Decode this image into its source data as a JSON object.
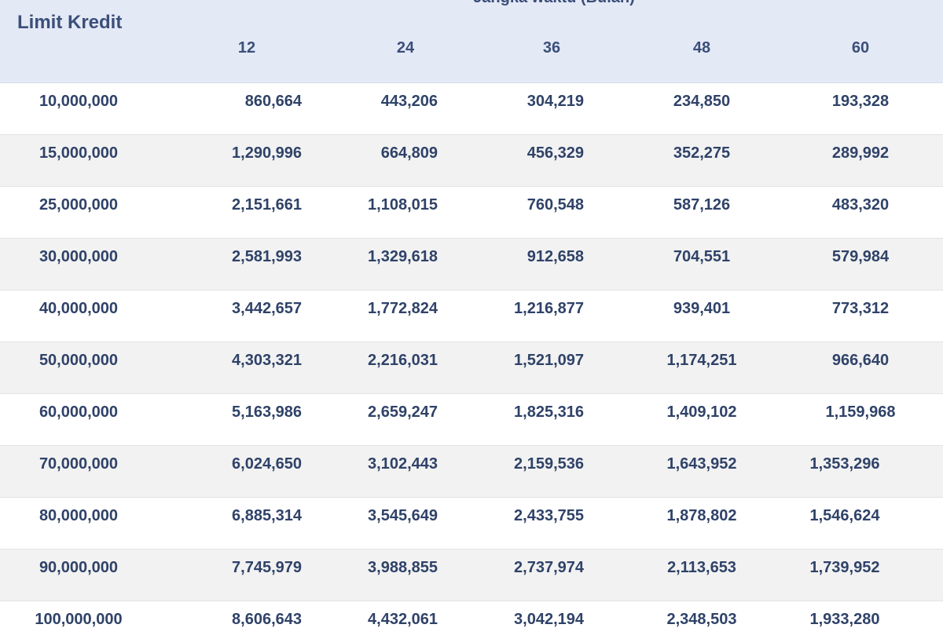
{
  "header": {
    "title": "Limit Kredit",
    "group_label": "Jangka waktu (Bulan)",
    "columns": [
      "12",
      "24",
      "36",
      "48",
      "60"
    ]
  },
  "rows": [
    {
      "limit": "10,000,000",
      "values": [
        "860,664",
        "443,206",
        "304,219",
        "234,850",
        "193,328"
      ]
    },
    {
      "limit": "15,000,000",
      "values": [
        "1,290,996",
        "664,809",
        "456,329",
        "352,275",
        "289,992"
      ]
    },
    {
      "limit": "25,000,000",
      "values": [
        "2,151,661",
        "1,108,015",
        "760,548",
        "587,126",
        "483,320"
      ]
    },
    {
      "limit": "30,000,000",
      "values": [
        "2,581,993",
        "1,329,618",
        "912,658",
        "704,551",
        "579,984"
      ]
    },
    {
      "limit": "40,000,000",
      "values": [
        "3,442,657",
        "1,772,824",
        "1,216,877",
        "939,401",
        "773,312"
      ]
    },
    {
      "limit": "50,000,000",
      "values": [
        "4,303,321",
        "2,216,031",
        "1,521,097",
        "1,174,251",
        "966,640"
      ]
    },
    {
      "limit": "60,000,000",
      "values": [
        "5,163,986",
        "2,659,247",
        "1,825,316",
        "1,409,102",
        "1,159,968"
      ]
    },
    {
      "limit": "70,000,000",
      "values": [
        "6,024,650",
        "3,102,443",
        "2,159,536",
        "1,643,952",
        "1,353,296"
      ]
    },
    {
      "limit": "80,000,000",
      "values": [
        "6,885,314",
        "3,545,649",
        "2,433,755",
        "1,878,802",
        "1,546,624"
      ]
    },
    {
      "limit": "90,000,000",
      "values": [
        "7,745,979",
        "3,988,855",
        "2,737,974",
        "2,113,653",
        "1,739,952"
      ]
    },
    {
      "limit": "100,000,000",
      "values": [
        "8,606,643",
        "4,432,061",
        "3,042,194",
        "2,348,503",
        "1,933,280"
      ]
    }
  ]
}
